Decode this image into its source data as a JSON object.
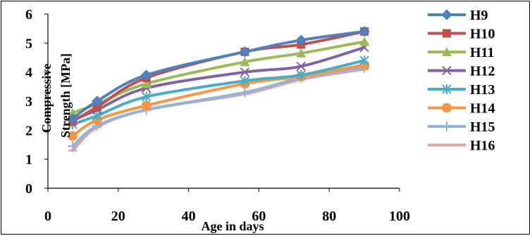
{
  "chart_data": {
    "type": "line",
    "title": "",
    "xlabel": "Age in days",
    "ylabel": "Compressive Strength [MPa]",
    "ylabel_lines": [
      "Compressive",
      "Strength [MPa]"
    ],
    "xlim": [
      0,
      100
    ],
    "ylim": [
      0,
      6
    ],
    "xticks": [
      0,
      20,
      40,
      60,
      80,
      100
    ],
    "yticks": [
      0,
      1,
      2,
      3,
      4,
      5,
      6
    ],
    "grid": false,
    "legend_position": "right",
    "x": [
      7,
      14,
      28,
      56,
      72,
      90
    ],
    "series": [
      {
        "name": "H9",
        "color": "#4f81bd",
        "marker": "diamond",
        "values": [
          2.4,
          3.0,
          3.9,
          4.7,
          5.1,
          5.4
        ]
      },
      {
        "name": "H10",
        "color": "#c0504d",
        "marker": "square",
        "values": [
          2.3,
          2.8,
          3.8,
          4.7,
          4.95,
          5.4
        ]
      },
      {
        "name": "H11",
        "color": "#9bbb59",
        "marker": "triangle",
        "values": [
          2.6,
          2.9,
          3.6,
          4.35,
          4.65,
          5.05
        ]
      },
      {
        "name": "H12",
        "color": "#8064a2",
        "marker": "x",
        "values": [
          2.35,
          2.7,
          3.45,
          4.0,
          4.2,
          4.85
        ]
      },
      {
        "name": "H13",
        "color": "#4bacc6",
        "marker": "star",
        "values": [
          2.2,
          2.5,
          3.15,
          3.7,
          3.9,
          4.4
        ]
      },
      {
        "name": "H14",
        "color": "#f79646",
        "marker": "circle",
        "values": [
          1.8,
          2.35,
          2.85,
          3.6,
          3.85,
          4.25
        ]
      },
      {
        "name": "H15",
        "color": "#95b3d7",
        "marker": "plus",
        "values": [
          1.45,
          2.15,
          2.7,
          3.3,
          3.8,
          4.15
        ]
      },
      {
        "name": "H16",
        "color": "#e6a2a0",
        "marker": "dash",
        "values": [
          1.3,
          2.1,
          2.7,
          3.25,
          3.75,
          4.1
        ]
      }
    ]
  }
}
